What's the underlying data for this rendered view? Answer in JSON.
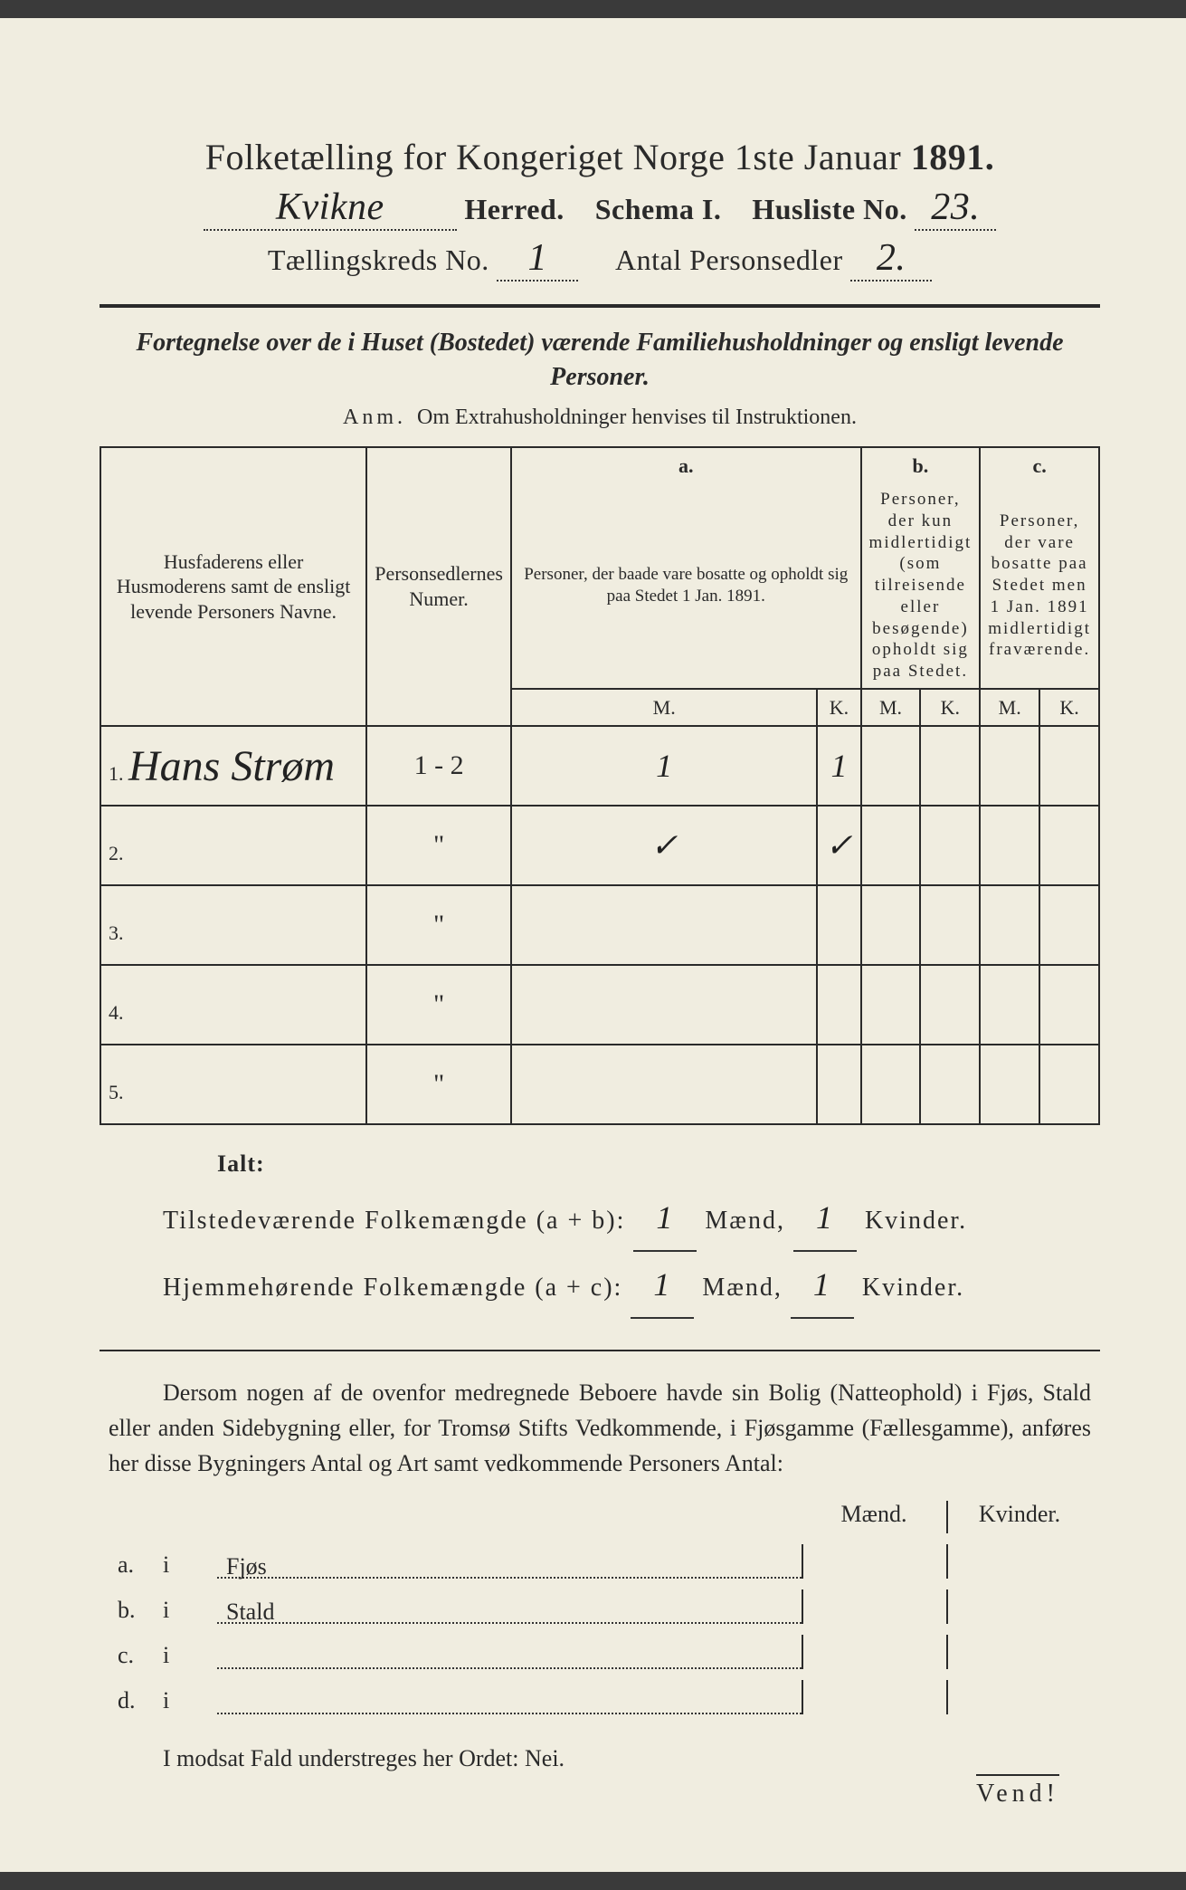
{
  "header": {
    "title_pre": "Folketælling for Kongeriget Norge 1ste Januar",
    "year": "1891.",
    "herred_value": "Kvikne",
    "herred_label": "Herred.",
    "schema_label": "Schema I.",
    "husliste_label": "Husliste No.",
    "husliste_value": "23.",
    "kreds_label": "Tællingskreds No.",
    "kreds_value": "1",
    "antal_label": "Antal Personsedler",
    "antal_value": "2."
  },
  "subtitle": "Fortegnelse over de i Huset (Bostedet) værende Familiehusholdninger og ensligt levende Personer.",
  "anm": {
    "lbl": "Anm.",
    "text": "Om Extrahusholdninger henvises til Instruktionen."
  },
  "table": {
    "col_name": "Husfaderens eller Husmoderens samt de ensligt levende Personers Navne.",
    "col_num": "Personsedlernes Numer.",
    "grp_a": "a.",
    "grp_a_text": "Personer, der baade vare bosatte og opholdt sig paa Stedet 1 Jan. 1891.",
    "grp_b": "b.",
    "grp_b_text": "Personer, der kun midlertidigt (som tilreisende eller besøgende) opholdt sig paa Stedet.",
    "grp_c": "c.",
    "grp_c_text": "Personer, der vare bosatte paa Stedet men 1 Jan. 1891 midlertidigt fraværende.",
    "m": "M.",
    "k": "K.",
    "rows": [
      {
        "n": "1.",
        "name": "Hans Strøm",
        "num": "1 - 2",
        "a_m": "1",
        "a_k": "1",
        "b_m": "",
        "b_k": "",
        "c_m": "",
        "c_k": ""
      },
      {
        "n": "2.",
        "name": "",
        "num": "\"",
        "a_m": "✓",
        "a_k": "✓",
        "b_m": "",
        "b_k": "",
        "c_m": "",
        "c_k": ""
      },
      {
        "n": "3.",
        "name": "",
        "num": "\"",
        "a_m": "",
        "a_k": "",
        "b_m": "",
        "b_k": "",
        "c_m": "",
        "c_k": ""
      },
      {
        "n": "4.",
        "name": "",
        "num": "\"",
        "a_m": "",
        "a_k": "",
        "b_m": "",
        "b_k": "",
        "c_m": "",
        "c_k": ""
      },
      {
        "n": "5.",
        "name": "",
        "num": "\"",
        "a_m": "",
        "a_k": "",
        "b_m": "",
        "b_k": "",
        "c_m": "",
        "c_k": ""
      }
    ]
  },
  "totals": {
    "ialt": "Ialt:",
    "line1_label": "Tilstedeværende Folkemængde (a + b):",
    "line2_label": "Hjemmehørende Folkemængde (a + c):",
    "maend": "Mænd,",
    "kvinder": "Kvinder.",
    "l1_m": "1",
    "l1_k": "1",
    "l2_m": "1",
    "l2_k": "1"
  },
  "para": "Dersom nogen af de ovenfor medregnede Beboere havde sin Bolig (Natteophold) i Fjøs, Stald eller anden Sidebygning eller, for Tromsø Stifts Vedkommende, i Fjøsgamme (Fællesgamme), anføres her disse Bygningers Antal og Art samt vedkommende Personers Antal:",
  "bottom": {
    "maend": "Mænd.",
    "kvinder": "Kvinder.",
    "rows": [
      {
        "l": "a.",
        "i": "i",
        "t": "Fjøs"
      },
      {
        "l": "b.",
        "i": "i",
        "t": "Stald"
      },
      {
        "l": "c.",
        "i": "i",
        "t": ""
      },
      {
        "l": "d.",
        "i": "i",
        "t": ""
      }
    ]
  },
  "final": "I modsat Fald understreges her Ordet: Nei.",
  "vend": "Vend!"
}
